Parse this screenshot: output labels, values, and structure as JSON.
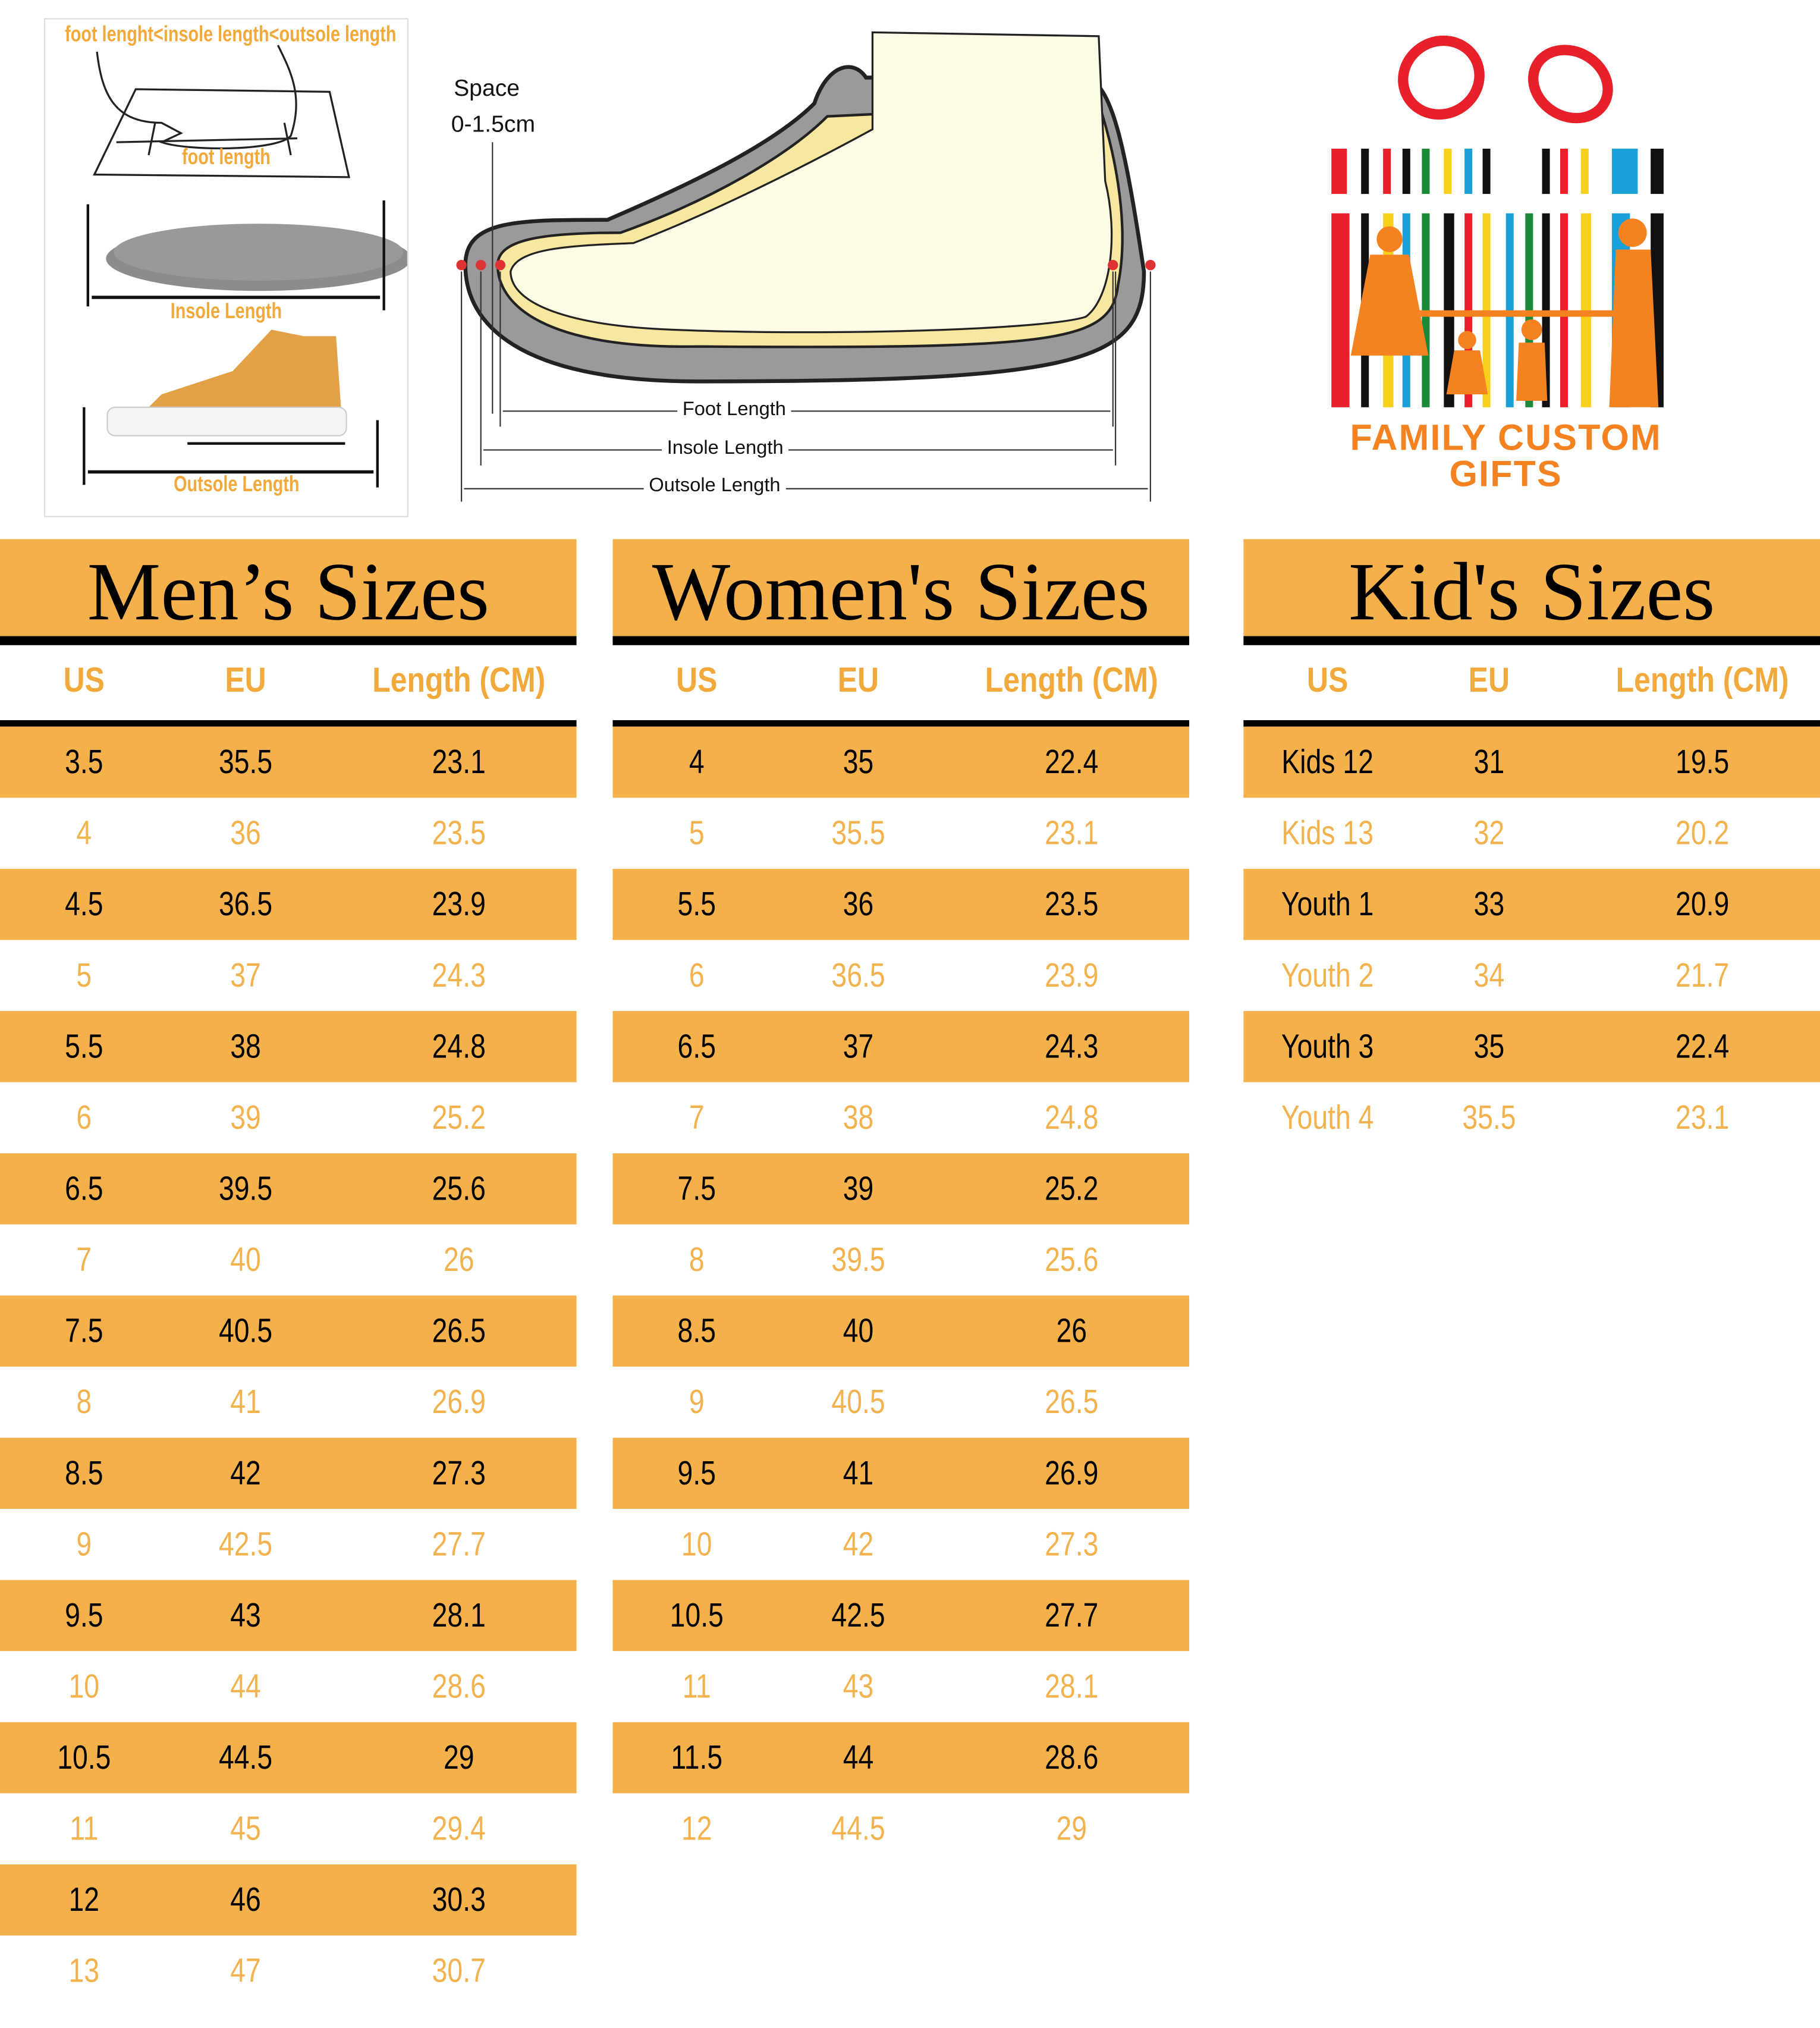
{
  "diagram": {
    "relation": "foot lenght<insole length<outsole length",
    "foot_length": "foot length",
    "insole_length": "Insole Length",
    "outsole_length": "Outsole Length",
    "space_label": "Space",
    "space_value": "0-1.5cm",
    "foot_length_arrow": "Foot Length",
    "insole_length_arrow": "Insole Length",
    "outsole_length_arrow": "Outsole Length"
  },
  "logo": {
    "text_line1": "FAMILY CUSTOM",
    "text_line2": "GIFTS"
  },
  "colors": {
    "accent": "#f4b04b",
    "text_accent": "#f2a93b",
    "bar": "#000000"
  },
  "columns": [
    "US",
    "EU",
    "Length (CM)"
  ],
  "tables": [
    {
      "title": "Men’s Sizes",
      "rows": [
        [
          "3.5",
          "35.5",
          "23.1"
        ],
        [
          "4",
          "36",
          "23.5"
        ],
        [
          "4.5",
          "36.5",
          "23.9"
        ],
        [
          "5",
          "37",
          "24.3"
        ],
        [
          "5.5",
          "38",
          "24.8"
        ],
        [
          "6",
          "39",
          "25.2"
        ],
        [
          "6.5",
          "39.5",
          "25.6"
        ],
        [
          "7",
          "40",
          "26"
        ],
        [
          "7.5",
          "40.5",
          "26.5"
        ],
        [
          "8",
          "41",
          "26.9"
        ],
        [
          "8.5",
          "42",
          "27.3"
        ],
        [
          "9",
          "42.5",
          "27.7"
        ],
        [
          "9.5",
          "43",
          "28.1"
        ],
        [
          "10",
          "44",
          "28.6"
        ],
        [
          "10.5",
          "44.5",
          "29"
        ],
        [
          "11",
          "45",
          "29.4"
        ],
        [
          "12",
          "46",
          "30.3"
        ],
        [
          "13",
          "47",
          "30.7"
        ]
      ]
    },
    {
      "title": "Women's Sizes",
      "rows": [
        [
          "4",
          "35",
          "22.4"
        ],
        [
          "5",
          "35.5",
          "23.1"
        ],
        [
          "5.5",
          "36",
          "23.5"
        ],
        [
          "6",
          "36.5",
          "23.9"
        ],
        [
          "6.5",
          "37",
          "24.3"
        ],
        [
          "7",
          "38",
          "24.8"
        ],
        [
          "7.5",
          "39",
          "25.2"
        ],
        [
          "8",
          "39.5",
          "25.6"
        ],
        [
          "8.5",
          "40",
          "26"
        ],
        [
          "9",
          "40.5",
          "26.5"
        ],
        [
          "9.5",
          "41",
          "26.9"
        ],
        [
          "10",
          "42",
          "27.3"
        ],
        [
          "10.5",
          "42.5",
          "27.7"
        ],
        [
          "11",
          "43",
          "28.1"
        ],
        [
          "11.5",
          "44",
          "28.6"
        ],
        [
          "12",
          "44.5",
          "29"
        ]
      ]
    },
    {
      "title": "Kid's Sizes",
      "rows": [
        [
          "Kids 12",
          "31",
          "19.5"
        ],
        [
          "Kids 13",
          "32",
          "20.2"
        ],
        [
          "Youth 1",
          "33",
          "20.9"
        ],
        [
          "Youth 2",
          "34",
          "21.7"
        ],
        [
          "Youth 3",
          "35",
          "22.4"
        ],
        [
          "Youth 4",
          "35.5",
          "23.1"
        ]
      ]
    }
  ]
}
